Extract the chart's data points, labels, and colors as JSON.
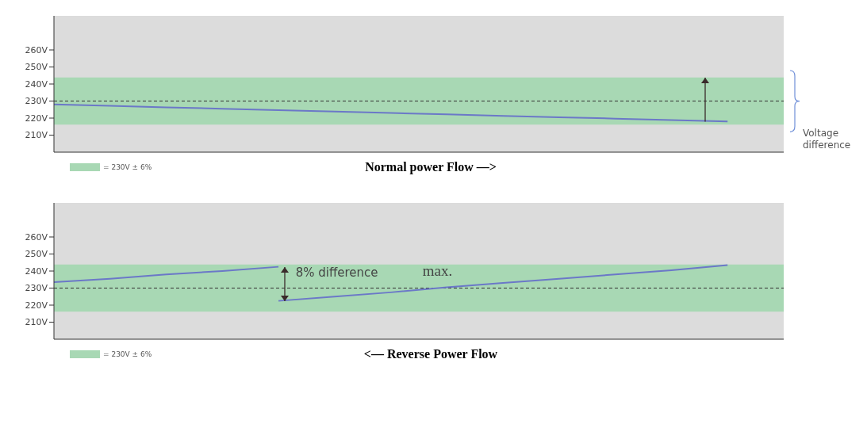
{
  "chart_data": [
    {
      "type": "line",
      "xlabel": "Normal power Flow —>",
      "categories": [
        null,
        null,
        null,
        null,
        null,
        null,
        null,
        null,
        null,
        null,
        null,
        null,
        null,
        null
      ],
      "series": [
        {
          "color": "#6b78c8",
          "values": [
            228,
            227.2,
            226.3,
            225.5,
            224.7,
            223.8,
            223,
            222.2,
            221.3,
            220.5,
            219.7,
            218.8,
            218,
            null
          ]
        }
      ],
      "ylim": [
        200,
        280
      ],
      "yticks": [
        {
          "value": 210,
          "label": "210V"
        },
        {
          "value": 220,
          "label": "220V"
        },
        {
          "value": 230,
          "label": "230V"
        },
        {
          "value": 240,
          "label": "240V"
        },
        {
          "value": 250,
          "label": "250V"
        },
        {
          "value": 260,
          "label": "260V"
        }
      ],
      "tick_labels": "y",
      "grid": false,
      "marker": "none",
      "line_style": "solid",
      "ref_lines": [
        {
          "axis": "y",
          "value": 230,
          "line_style": "dashed",
          "color": "#333333"
        }
      ],
      "bands": [
        {
          "axis": "y",
          "from": 216.2,
          "to": 243.8,
          "label": "= 230V ± 6%",
          "color": "#a8d8b4"
        }
      ],
      "annotations": [
        "Voltage difference"
      ]
    },
    {
      "type": "line",
      "xlabel": "<— Reverse Power Flow",
      "categories": [
        null,
        null,
        null,
        null,
        null,
        null,
        null,
        null,
        null,
        null,
        null,
        null,
        null,
        null
      ],
      "series": [
        {
          "color": "#6b78c8",
          "values": [
            233.5,
            235.5,
            238,
            240,
            242.5,
            null,
            null,
            null,
            null,
            null,
            null,
            null,
            null,
            null
          ]
        },
        {
          "color": "#6b78c8",
          "values": [
            null,
            null,
            null,
            null,
            222.5,
            225,
            227.5,
            230.5,
            233,
            235.5,
            238,
            240.5,
            243.5,
            null
          ]
        }
      ],
      "ylim": [
        200,
        280
      ],
      "yticks": [
        {
          "value": 210,
          "label": "210V"
        },
        {
          "value": 220,
          "label": "220V"
        },
        {
          "value": 230,
          "label": "230V"
        },
        {
          "value": 240,
          "label": "240V"
        },
        {
          "value": 250,
          "label": "250V"
        },
        {
          "value": 260,
          "label": "260V"
        }
      ],
      "tick_labels": "y",
      "grid": false,
      "marker": "none",
      "line_style": "solid",
      "ref_lines": [
        {
          "axis": "y",
          "value": 230,
          "line_style": "dashed",
          "color": "#333333"
        }
      ],
      "bands": [
        {
          "axis": "y",
          "from": 216.2,
          "to": 243.8,
          "label": "= 230V ± 6%",
          "color": "#a8d8b4"
        }
      ],
      "annotations": [
        "8% difference",
        "max."
      ]
    }
  ]
}
